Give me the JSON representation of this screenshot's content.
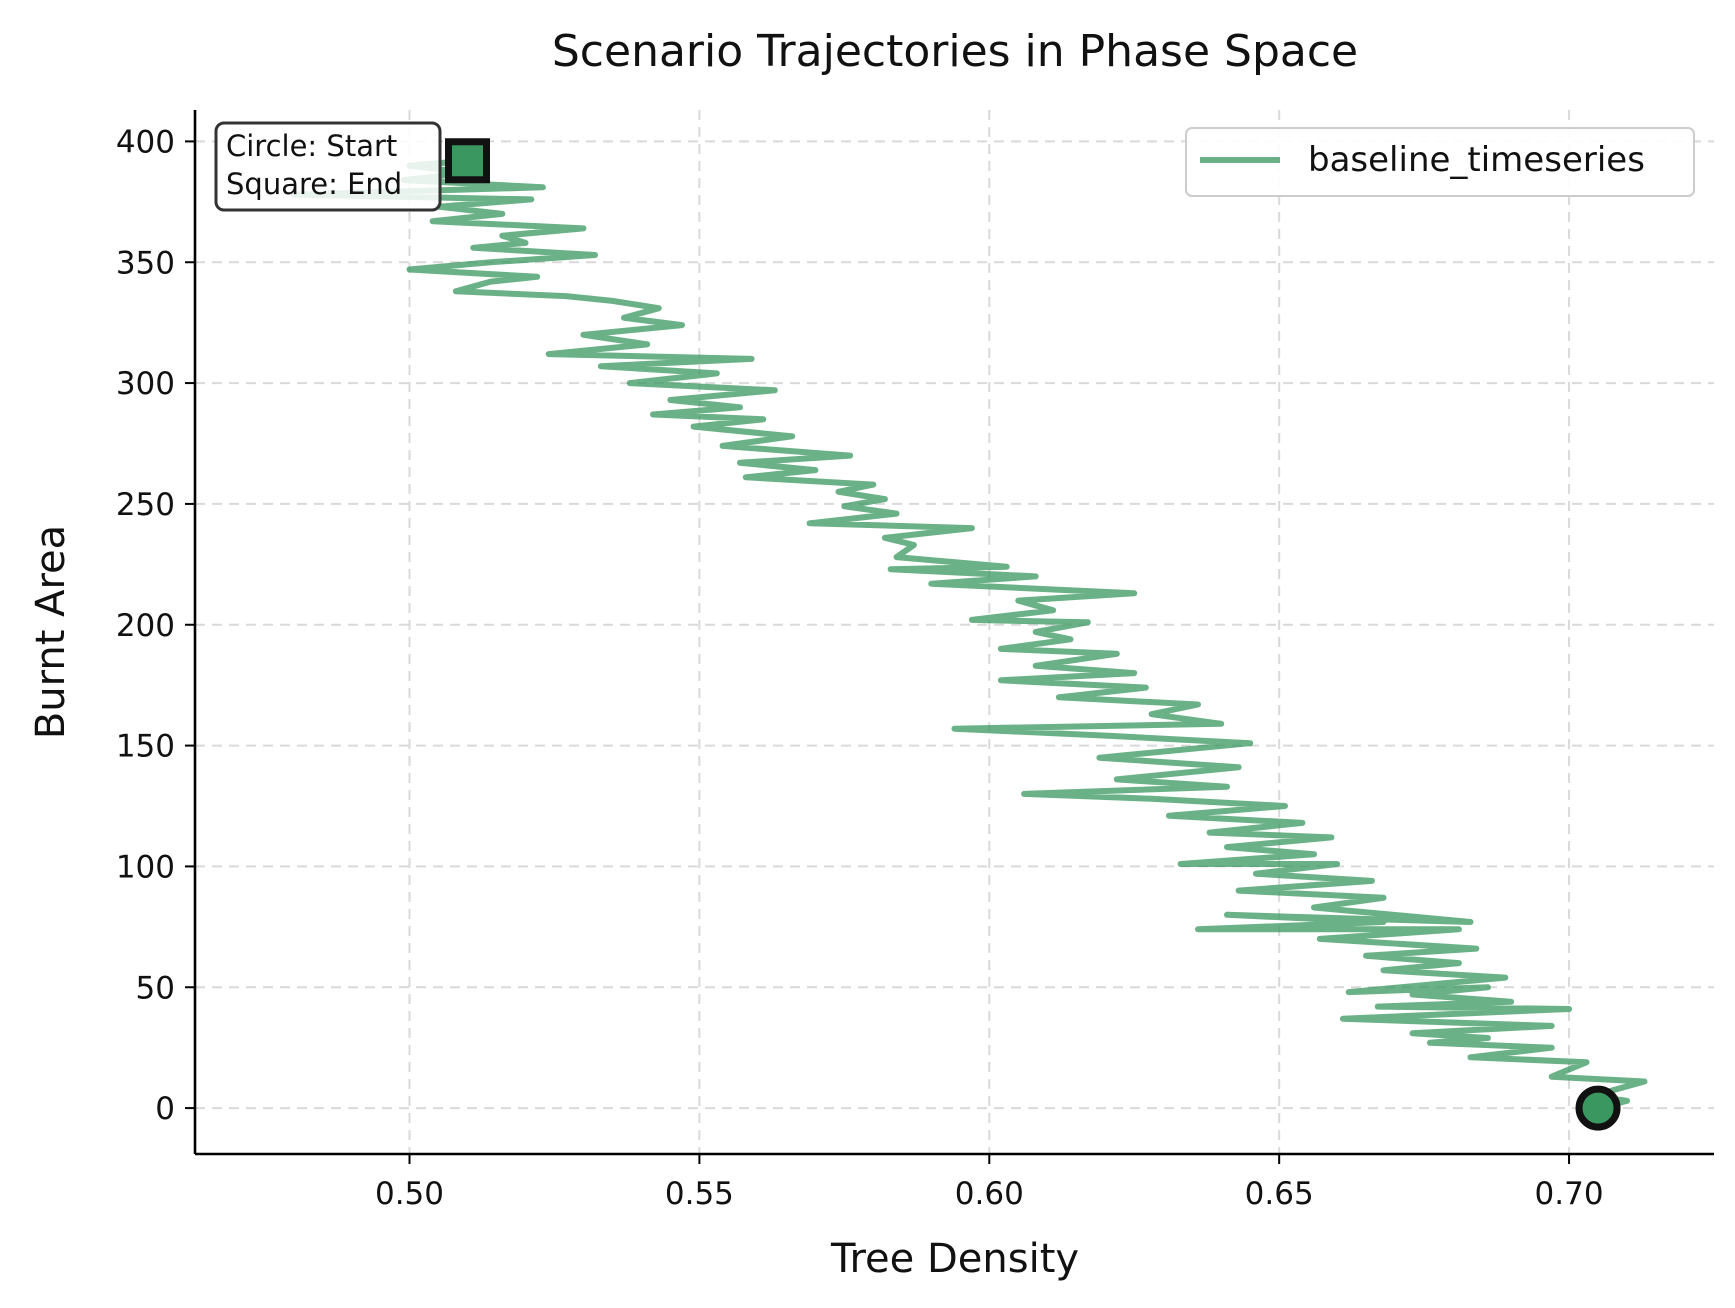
{
  "chart_data": {
    "type": "line",
    "title": "Scenario Trajectories in Phase Space",
    "xlabel": "Tree Density",
    "ylabel": "Burnt Area",
    "xlim": [
      0.463,
      0.725
    ],
    "ylim": [
      -19,
      413
    ],
    "x_ticks": [
      0.5,
      0.55,
      0.6,
      0.65,
      0.7
    ],
    "x_tick_labels": [
      "0.50",
      "0.55",
      "0.60",
      "0.65",
      "0.70"
    ],
    "y_ticks": [
      0,
      50,
      100,
      150,
      200,
      250,
      300,
      350,
      400
    ],
    "y_tick_labels": [
      "0",
      "50",
      "100",
      "150",
      "200",
      "250",
      "300",
      "350",
      "400"
    ],
    "grid": true,
    "legend_position": "top-right",
    "annotation": [
      "Circle: Start",
      "Square: End"
    ],
    "series": [
      {
        "name": "baseline_timeseries",
        "color": "#3a975f",
        "start_marker": "circle",
        "end_marker": "square",
        "points": [
          [
            0.705,
            0
          ],
          [
            0.71,
            3
          ],
          [
            0.704,
            5
          ],
          [
            0.713,
            11
          ],
          [
            0.697,
            13
          ],
          [
            0.703,
            19
          ],
          [
            0.683,
            21
          ],
          [
            0.697,
            25
          ],
          [
            0.676,
            27
          ],
          [
            0.686,
            29
          ],
          [
            0.673,
            31
          ],
          [
            0.697,
            34
          ],
          [
            0.661,
            37
          ],
          [
            0.7,
            41
          ],
          [
            0.667,
            42
          ],
          [
            0.69,
            44
          ],
          [
            0.673,
            47
          ],
          [
            0.686,
            50
          ],
          [
            0.662,
            48
          ],
          [
            0.689,
            54
          ],
          [
            0.668,
            57
          ],
          [
            0.681,
            60
          ],
          [
            0.665,
            63
          ],
          [
            0.684,
            66
          ],
          [
            0.657,
            70
          ],
          [
            0.681,
            74
          ],
          [
            0.636,
            74
          ],
          [
            0.668,
            77
          ],
          [
            0.641,
            80
          ],
          [
            0.683,
            77
          ],
          [
            0.656,
            83
          ],
          [
            0.668,
            87
          ],
          [
            0.643,
            90
          ],
          [
            0.666,
            94
          ],
          [
            0.646,
            97
          ],
          [
            0.66,
            101
          ],
          [
            0.633,
            101
          ],
          [
            0.656,
            105
          ],
          [
            0.641,
            108
          ],
          [
            0.659,
            112
          ],
          [
            0.638,
            114
          ],
          [
            0.654,
            118
          ],
          [
            0.631,
            121
          ],
          [
            0.651,
            125
          ],
          [
            0.628,
            128
          ],
          [
            0.606,
            130
          ],
          [
            0.641,
            133
          ],
          [
            0.622,
            136
          ],
          [
            0.643,
            141
          ],
          [
            0.619,
            145
          ],
          [
            0.645,
            151
          ],
          [
            0.621,
            154
          ],
          [
            0.594,
            157
          ],
          [
            0.64,
            159
          ],
          [
            0.628,
            163
          ],
          [
            0.636,
            167
          ],
          [
            0.612,
            170
          ],
          [
            0.627,
            174
          ],
          [
            0.602,
            177
          ],
          [
            0.625,
            180
          ],
          [
            0.608,
            183
          ],
          [
            0.622,
            188
          ],
          [
            0.602,
            190
          ],
          [
            0.614,
            194
          ],
          [
            0.608,
            197
          ],
          [
            0.617,
            201
          ],
          [
            0.597,
            202
          ],
          [
            0.611,
            206
          ],
          [
            0.605,
            210
          ],
          [
            0.625,
            213
          ],
          [
            0.59,
            217
          ],
          [
            0.608,
            220
          ],
          [
            0.583,
            223
          ],
          [
            0.603,
            224
          ],
          [
            0.584,
            228
          ],
          [
            0.587,
            233
          ],
          [
            0.582,
            236
          ],
          [
            0.597,
            240
          ],
          [
            0.569,
            242
          ],
          [
            0.584,
            246
          ],
          [
            0.575,
            249
          ],
          [
            0.582,
            252
          ],
          [
            0.574,
            255
          ],
          [
            0.58,
            258
          ],
          [
            0.558,
            261
          ],
          [
            0.57,
            264
          ],
          [
            0.557,
            267
          ],
          [
            0.576,
            270
          ],
          [
            0.554,
            274
          ],
          [
            0.566,
            278
          ],
          [
            0.549,
            282
          ],
          [
            0.561,
            285
          ],
          [
            0.542,
            287
          ],
          [
            0.557,
            290
          ],
          [
            0.545,
            293
          ],
          [
            0.563,
            297
          ],
          [
            0.538,
            300
          ],
          [
            0.553,
            304
          ],
          [
            0.533,
            307
          ],
          [
            0.559,
            310
          ],
          [
            0.524,
            312
          ],
          [
            0.541,
            316
          ],
          [
            0.53,
            320
          ],
          [
            0.547,
            324
          ],
          [
            0.537,
            327
          ],
          [
            0.543,
            331
          ],
          [
            0.535,
            334
          ],
          [
            0.527,
            336
          ],
          [
            0.508,
            338
          ],
          [
            0.514,
            342
          ],
          [
            0.522,
            344
          ],
          [
            0.5,
            347
          ],
          [
            0.514,
            350
          ],
          [
            0.532,
            353
          ],
          [
            0.511,
            356
          ],
          [
            0.52,
            358
          ],
          [
            0.516,
            361
          ],
          [
            0.53,
            364
          ],
          [
            0.504,
            367
          ],
          [
            0.516,
            370
          ],
          [
            0.505,
            373
          ],
          [
            0.521,
            376
          ],
          [
            0.48,
            378
          ],
          [
            0.523,
            381
          ],
          [
            0.499,
            384
          ],
          [
            0.51,
            387
          ],
          [
            0.5,
            390
          ],
          [
            0.51,
            392
          ]
        ]
      }
    ]
  }
}
